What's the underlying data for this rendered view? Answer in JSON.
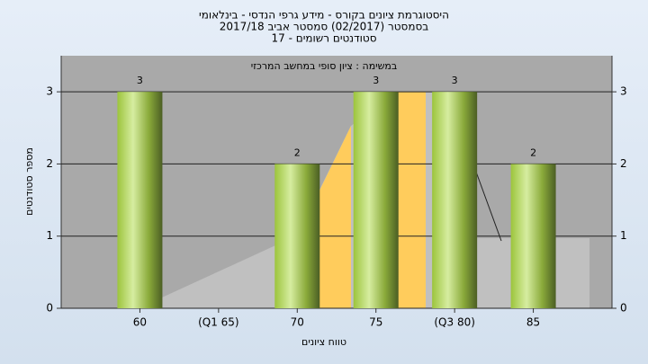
{
  "chart_data": {
    "type": "bar",
    "title": "היסטוגרמת ציונים בקורס - מידע גרפי הנדסי - בינלאומי",
    "subtitle": "בסמסטר  (02/2017)  סמסטר אביב 2017/18",
    "enrolled": "סטודנטים רשומים - 17",
    "task": "במשימה : ציון סופי במחשב המרכזי",
    "y_label": "מספר סטודנטים",
    "x_label": "טווח ציונים",
    "categories": [
      "60",
      "(Q1 65)",
      "70",
      "75",
      "(Q3 80)",
      "85"
    ],
    "values": [
      3,
      null,
      2,
      3,
      3,
      2
    ],
    "ylim": [
      0,
      3.5
    ],
    "yticks": [
      0,
      1,
      2,
      3
    ],
    "grid": true
  }
}
